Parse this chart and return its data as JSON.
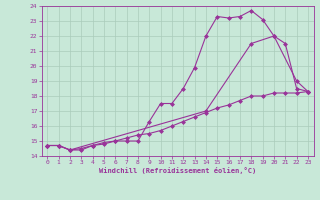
{
  "title": "",
  "xlabel": "Windchill (Refroidissement éolien,°C)",
  "ylabel": "",
  "xlim": [
    -0.5,
    23.5
  ],
  "ylim": [
    14,
    24
  ],
  "yticks": [
    14,
    15,
    16,
    17,
    18,
    19,
    20,
    21,
    22,
    23,
    24
  ],
  "xticks": [
    0,
    1,
    2,
    3,
    4,
    5,
    6,
    7,
    8,
    9,
    10,
    11,
    12,
    13,
    14,
    15,
    16,
    17,
    18,
    19,
    20,
    21,
    22,
    23
  ],
  "bg_color": "#c8e8d8",
  "grid_color": "#aaccbb",
  "line_color": "#993399",
  "line1_x": [
    0,
    1,
    2,
    3,
    4,
    5,
    6,
    7,
    8,
    9,
    10,
    11,
    12,
    13,
    14,
    15,
    16,
    17,
    18,
    19,
    20,
    21,
    22,
    23
  ],
  "line1_y": [
    14.7,
    14.7,
    14.4,
    14.4,
    14.7,
    14.8,
    15.0,
    15.0,
    15.0,
    16.3,
    17.5,
    17.5,
    18.5,
    19.9,
    22.0,
    23.3,
    23.2,
    23.3,
    23.7,
    23.1,
    22.0,
    21.5,
    18.5,
    18.3
  ],
  "line2_x": [
    0,
    1,
    2,
    3,
    4,
    5,
    6,
    7,
    8,
    9,
    10,
    11,
    12,
    13,
    14,
    15,
    16,
    17,
    18,
    19,
    20,
    21,
    22,
    23
  ],
  "line2_y": [
    14.7,
    14.7,
    14.4,
    14.5,
    14.7,
    14.9,
    15.0,
    15.2,
    15.4,
    15.5,
    15.7,
    16.0,
    16.3,
    16.6,
    16.9,
    17.2,
    17.4,
    17.7,
    18.0,
    18.0,
    18.2,
    18.2,
    18.2,
    18.3
  ],
  "line3_x": [
    0,
    1,
    2,
    14,
    18,
    20,
    22,
    23
  ],
  "line3_y": [
    14.7,
    14.7,
    14.4,
    17.0,
    21.5,
    22.0,
    19.0,
    18.3
  ],
  "marker": "D",
  "markersize": 2.0,
  "linewidth": 0.8
}
